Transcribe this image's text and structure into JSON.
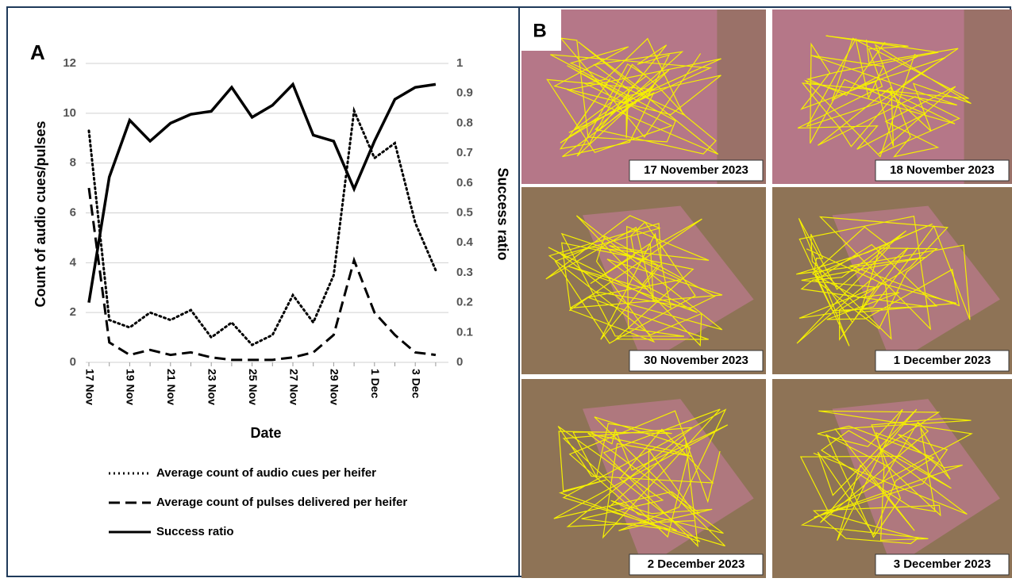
{
  "chart_data": {
    "type": "line",
    "panel_label": "A",
    "x_label": "Date",
    "y_label": "Count of audio cues/pulses",
    "y2_label": "Success ratio",
    "categories": [
      "17 Nov",
      null,
      "19 Nov",
      null,
      "21 Nov",
      null,
      "23 Nov",
      null,
      "25 Nov",
      null,
      "27 Nov",
      null,
      "29 Nov",
      null,
      "1 Dec",
      null,
      "3 Dec",
      null
    ],
    "ylim": [
      0,
      12
    ],
    "yticks": [
      0,
      2,
      4,
      6,
      8,
      10,
      12
    ],
    "y2lim": [
      0,
      1
    ],
    "y2ticks": [
      0,
      0.1,
      0.2,
      0.3,
      0.4,
      0.5,
      0.6,
      0.7,
      0.8,
      0.9,
      1
    ],
    "series": [
      {
        "name": "Average count of audio cues per heifer",
        "color": "#000000",
        "dash": "dotted",
        "values": [
          9.3,
          1.7,
          1.4,
          2.0,
          1.7,
          2.1,
          1.0,
          1.6,
          0.7,
          1.1,
          2.7,
          1.6,
          3.5,
          10.1,
          8.2,
          8.8,
          5.6,
          3.7
        ]
      },
      {
        "name": "Average count of pulses delivered per heifer",
        "color": "#000000",
        "dash": "dashed",
        "values": [
          7.0,
          0.8,
          0.3,
          0.5,
          0.3,
          0.4,
          0.2,
          0.1,
          0.1,
          0.1,
          0.2,
          0.4,
          1.1,
          4.1,
          2.0,
          1.1,
          0.4,
          0.3
        ]
      },
      {
        "name": "Success ratio",
        "color": "#000000",
        "dash": "solid",
        "axis": "y2",
        "values": [
          0.2,
          0.62,
          0.81,
          0.74,
          0.8,
          0.83,
          0.84,
          0.92,
          0.82,
          0.86,
          0.93,
          0.76,
          0.74,
          0.58,
          0.74,
          0.88,
          0.92,
          0.93
        ]
      }
    ]
  },
  "panel_b": {
    "label": "B",
    "maps": [
      "17 November 2023",
      "18 November 2023",
      "30 November 2023",
      "1 December 2023",
      "2 December 2023",
      "3 December 2023"
    ]
  }
}
